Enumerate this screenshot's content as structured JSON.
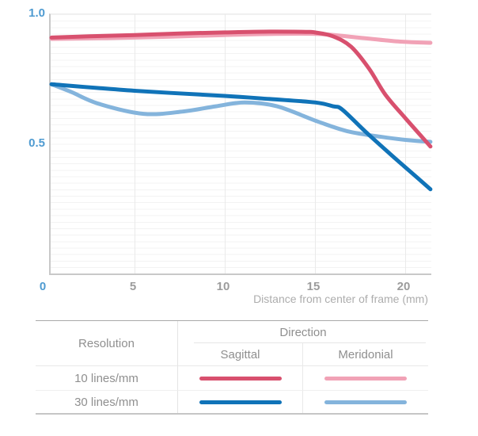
{
  "chart_data": {
    "type": "line",
    "title": "",
    "xlabel": "Distance from center of frame (mm)",
    "ylabel": "",
    "xlim": [
      0,
      21.4
    ],
    "ylim": [
      0,
      1.0
    ],
    "grid": "faint horizontal minor gridlines every 0.025; vertical gridlines at labeled x ticks",
    "legend_position": "table below chart",
    "x_ticks": [
      {
        "value": 0,
        "label": "0",
        "accent": true
      },
      {
        "value": 5,
        "label": "5",
        "accent": false
      },
      {
        "value": 10,
        "label": "10",
        "accent": false
      },
      {
        "value": 15,
        "label": "15",
        "accent": false
      },
      {
        "value": 20,
        "label": "20",
        "accent": false
      }
    ],
    "y_ticks": [
      {
        "value": 1.0,
        "label": "1.0"
      },
      {
        "value": 0.5,
        "label": "0.5"
      }
    ],
    "series": [
      {
        "name": "10 lines/mm Sagittal",
        "color": "#d8506e",
        "x": [
          0.4,
          2.5,
          5,
          7.5,
          10,
          12.5,
          14.5,
          15,
          16,
          17,
          18,
          18.9,
          20,
          21.4
        ],
        "y": [
          0.91,
          0.915,
          0.92,
          0.926,
          0.93,
          0.933,
          0.932,
          0.93,
          0.915,
          0.875,
          0.79,
          0.69,
          0.6,
          0.49
        ]
      },
      {
        "name": "10 lines/mm Meridonial",
        "color": "#f1a2b6",
        "x": [
          0.4,
          5,
          10,
          12.5,
          15.2,
          17.4,
          19.6,
          21.4
        ],
        "y": [
          0.905,
          0.91,
          0.92,
          0.924,
          0.924,
          0.91,
          0.895,
          0.89
        ]
      },
      {
        "name": "30 lines/mm Sagittal",
        "color": "#1073b8",
        "x": [
          0.4,
          5,
          10,
          12.5,
          15,
          16,
          16.5,
          17.8,
          19.1,
          20.2,
          21.4
        ],
        "y": [
          0.73,
          0.705,
          0.685,
          0.673,
          0.66,
          0.645,
          0.633,
          0.547,
          0.465,
          0.398,
          0.325
        ]
      },
      {
        "name": "30 lines/mm Meridonial",
        "color": "#84b4dc",
        "x": [
          0.4,
          1.5,
          3,
          5.5,
          7.7,
          9.5,
          11.1,
          12.9,
          15.2,
          16.9,
          18.7,
          20.2,
          21.4
        ],
        "y": [
          0.73,
          0.7,
          0.655,
          0.616,
          0.625,
          0.645,
          0.66,
          0.645,
          0.585,
          0.547,
          0.527,
          0.514,
          0.508
        ]
      }
    ]
  },
  "legend_table": {
    "resolution_header": "Resolution",
    "direction_header": "Direction",
    "sagittal_header": "Sagittal",
    "meridonial_header": "Meridonial",
    "rows": [
      {
        "label": "10 lines/mm",
        "sagittal_color": "#d8506e",
        "meridonial_color": "#f1a2b6"
      },
      {
        "label": "30 lines/mm",
        "sagittal_color": "#1073b8",
        "meridonial_color": "#84b4dc"
      }
    ]
  },
  "colors": {
    "accent_tick": "#4f9bd1",
    "gray_tick": "#9c9c9c",
    "axis_title": "#adadad"
  }
}
